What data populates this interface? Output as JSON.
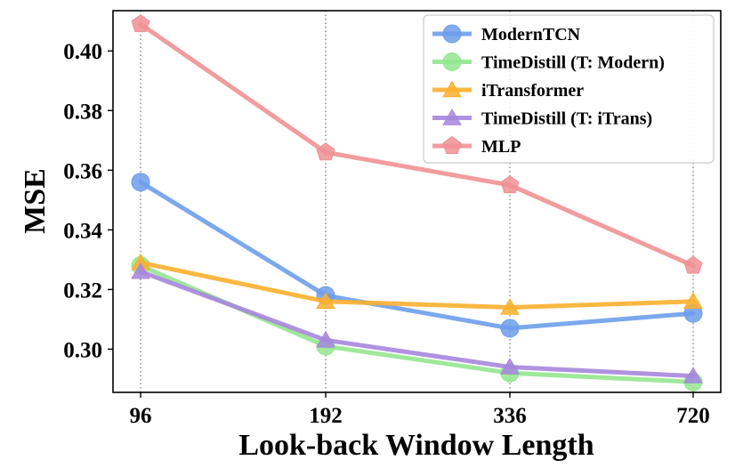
{
  "chart_data": {
    "type": "line",
    "title": "",
    "xlabel": "Look-back Window Length",
    "ylabel": "MSE",
    "categories": [
      "96",
      "192",
      "336",
      "720"
    ],
    "ylim": [
      0.2855,
      0.4135
    ],
    "yticks": [
      0.3,
      0.32,
      0.34,
      0.36,
      0.38,
      0.4
    ],
    "ytick_labels": [
      "0.30",
      "0.32",
      "0.34",
      "0.36",
      "0.38",
      "0.40"
    ],
    "grid": "x-dotted",
    "legend_position": "top-right",
    "series": [
      {
        "name": "ModernTCN",
        "color": "#6d9eeb",
        "marker": "circle",
        "values": [
          0.356,
          0.318,
          0.307,
          0.312
        ]
      },
      {
        "name": "TimeDistill (T: Modern)",
        "color": "#93e68f",
        "marker": "circle",
        "values": [
          0.328,
          0.301,
          0.292,
          0.289
        ]
      },
      {
        "name": "iTransformer",
        "color": "#f9b02e",
        "marker": "triangle",
        "values": [
          0.329,
          0.316,
          0.314,
          0.316
        ]
      },
      {
        "name": "TimeDistill (T: iTrans)",
        "color": "#a786de",
        "marker": "triangle",
        "values": [
          0.326,
          0.303,
          0.294,
          0.291
        ]
      },
      {
        "name": "MLP",
        "color": "#f09194",
        "marker": "pentagon",
        "values": [
          0.409,
          0.366,
          0.355,
          0.328
        ]
      }
    ]
  }
}
